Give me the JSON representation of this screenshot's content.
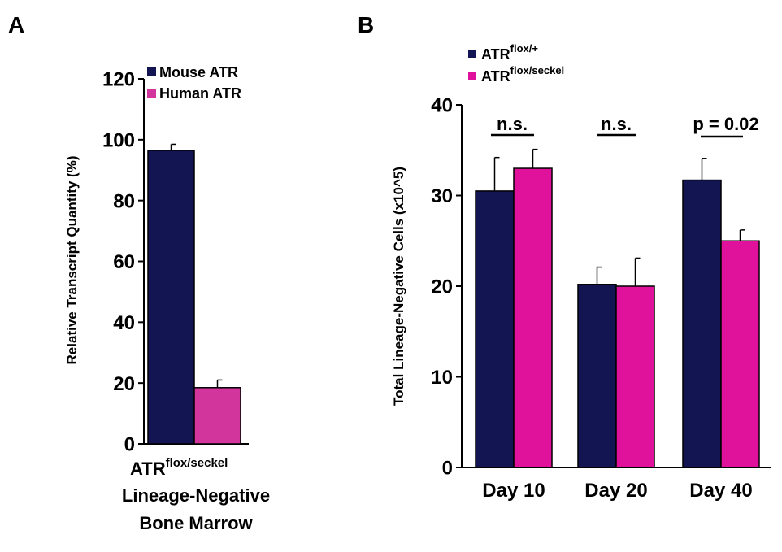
{
  "colors": {
    "series1": "#131552",
    "panelA_series2": "#d2359c",
    "panelB_series2": "#e0119b",
    "axis": "#000000"
  },
  "chart_data": [
    {
      "panel_label": "A",
      "type": "bar",
      "title": "",
      "xlabel": "",
      "category_label": {
        "base": "ATR",
        "superscript": "flox/seckel",
        "line2": "Lineage-Negative",
        "line3": "Bone Marrow"
      },
      "ylabel": "Relative Transcript Quantity (%)",
      "ylim": [
        0,
        120
      ],
      "yticks": [
        0,
        20,
        40,
        60,
        80,
        100,
        120
      ],
      "legend_position": "top-right",
      "grid": false,
      "series": [
        {
          "name": "Mouse ATR",
          "values": [
            96.5
          ],
          "error": [
            2.0
          ]
        },
        {
          "name": "Human ATR",
          "values": [
            18.5
          ],
          "error": [
            2.5
          ]
        }
      ]
    },
    {
      "panel_label": "B",
      "type": "bar",
      "title": "",
      "xlabel": "",
      "ylabel": "Total Lineage-Negative Cells (x10^5)",
      "ylim": [
        0,
        40
      ],
      "yticks": [
        0,
        10,
        20,
        30,
        40
      ],
      "categories": [
        "Day 10",
        "Day 20",
        "Day 40"
      ],
      "legend_position": "top-left",
      "grid": false,
      "series": [
        {
          "name_base": "ATR",
          "name_superscript": "flox/+",
          "values": [
            30.5,
            20.2,
            31.7
          ],
          "error": [
            3.7,
            1.9,
            2.4
          ]
        },
        {
          "name_base": "ATR",
          "name_superscript": "flox/seckel",
          "values": [
            33.0,
            20.0,
            25.0
          ],
          "error": [
            2.1,
            3.1,
            1.2
          ]
        }
      ],
      "annotations": [
        "n.s.",
        "n.s.",
        "p = 0.02"
      ]
    }
  ]
}
